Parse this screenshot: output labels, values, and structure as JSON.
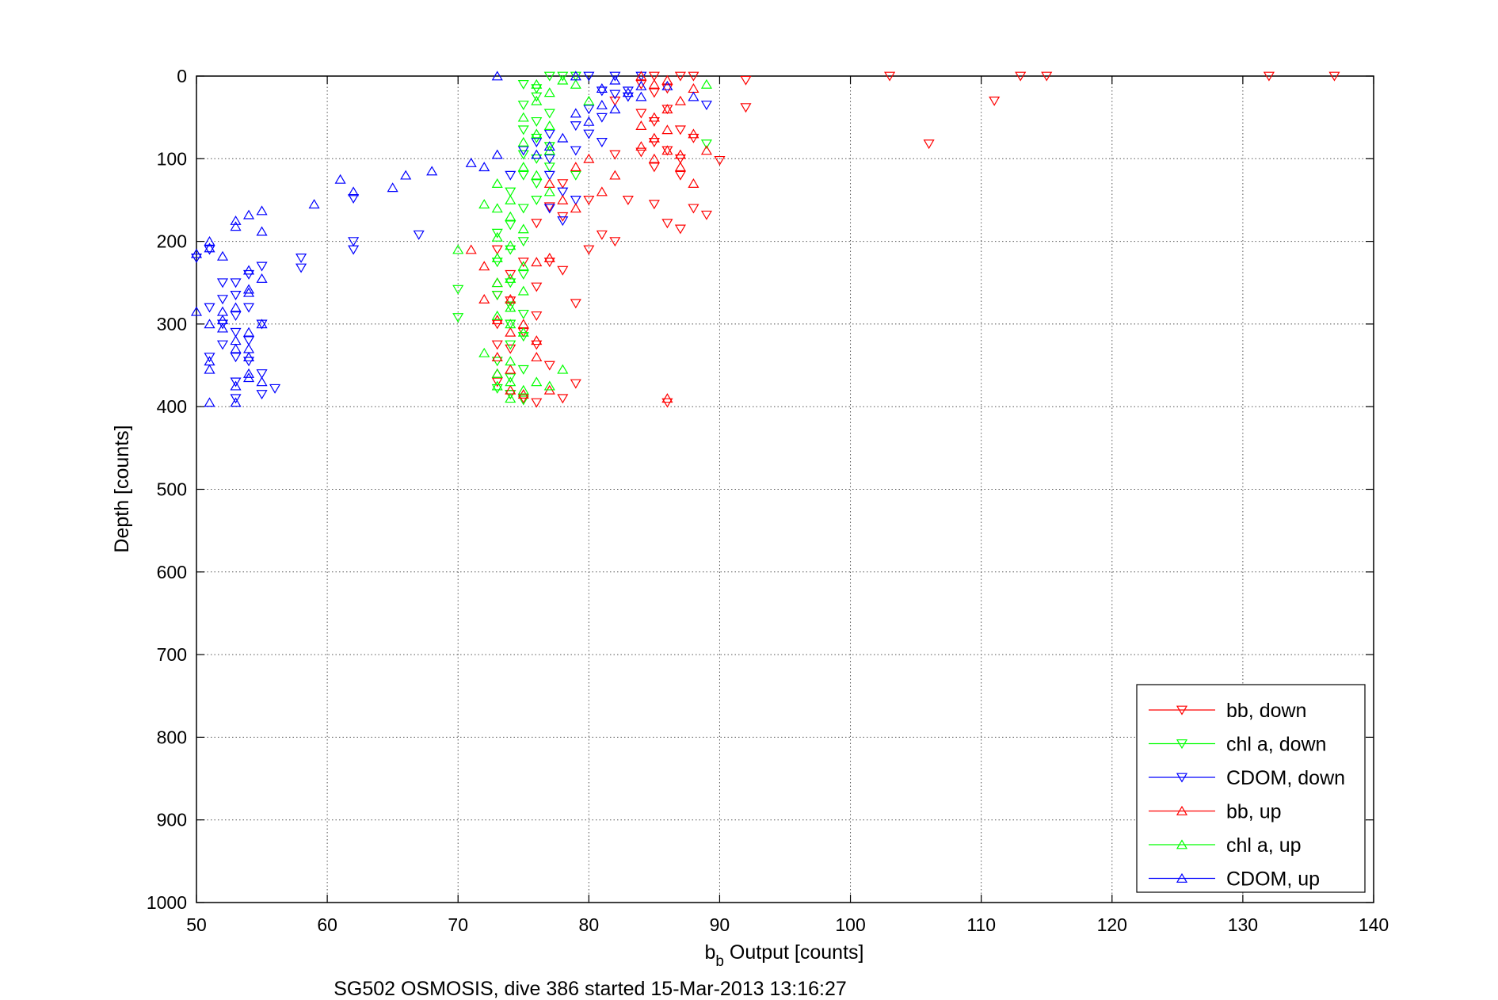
{
  "chart_data": {
    "type": "scatter",
    "xlabel_main": "b",
    "xlabel_sub": "b",
    "xlabel_rest": " Output [counts]",
    "ylabel": "Depth [counts]",
    "caption": "SG502 OSMOSIS, dive 386 started 15-Mar-2013 13:16:27",
    "xlim": [
      50,
      140
    ],
    "ylim": [
      0,
      1000
    ],
    "y_reversed": true,
    "grid": true,
    "x_ticks": [
      50,
      60,
      70,
      80,
      90,
      100,
      110,
      120,
      130,
      140
    ],
    "y_ticks": [
      0,
      100,
      200,
      300,
      400,
      500,
      600,
      700,
      800,
      900,
      1000
    ],
    "legend_position": "bottom-right",
    "series": [
      {
        "name": "bb, down",
        "color": "#ff0000",
        "marker": "triangle-down",
        "points": [
          [
            85,
            0
          ],
          [
            87,
            0
          ],
          [
            88,
            0
          ],
          [
            103,
            0
          ],
          [
            113,
            0
          ],
          [
            115,
            0
          ],
          [
            132,
            0
          ],
          [
            137,
            0
          ],
          [
            92,
            5
          ],
          [
            111,
            30
          ],
          [
            92,
            38
          ],
          [
            106,
            82
          ],
          [
            84,
            10
          ],
          [
            85,
            20
          ],
          [
            86,
            15
          ],
          [
            82,
            30
          ],
          [
            84,
            45
          ],
          [
            85,
            55
          ],
          [
            86,
            40
          ],
          [
            87,
            65
          ],
          [
            88,
            75
          ],
          [
            85,
            80
          ],
          [
            86,
            90
          ],
          [
            84,
            92
          ],
          [
            82,
            95
          ],
          [
            87,
            100
          ],
          [
            90,
            102
          ],
          [
            85,
            110
          ],
          [
            87,
            120
          ],
          [
            83,
            150
          ],
          [
            85,
            155
          ],
          [
            88,
            160
          ],
          [
            89,
            168
          ],
          [
            86,
            178
          ],
          [
            87,
            185
          ],
          [
            81,
            192
          ],
          [
            82,
            200
          ],
          [
            80,
            210
          ],
          [
            77,
            158
          ],
          [
            78,
            170
          ],
          [
            76,
            178
          ],
          [
            73,
            210
          ],
          [
            75,
            225
          ],
          [
            77,
            225
          ],
          [
            78,
            235
          ],
          [
            74,
            240
          ],
          [
            76,
            255
          ],
          [
            73,
            265
          ],
          [
            74,
            272
          ],
          [
            76,
            290
          ],
          [
            79,
            275
          ],
          [
            73,
            300
          ],
          [
            75,
            310
          ],
          [
            73,
            325
          ],
          [
            74,
            330
          ],
          [
            76,
            325
          ],
          [
            77,
            350
          ],
          [
            73,
            370
          ],
          [
            74,
            385
          ],
          [
            75,
            390
          ],
          [
            76,
            395
          ],
          [
            78,
            390
          ],
          [
            86,
            395
          ],
          [
            79,
            372
          ],
          [
            80,
            150
          ],
          [
            78,
            130
          ]
        ]
      },
      {
        "name": "chl a, down",
        "color": "#00ff00",
        "marker": "triangle-down",
        "points": [
          [
            75,
            10
          ],
          [
            76,
            15
          ],
          [
            77,
            0
          ],
          [
            78,
            0
          ],
          [
            79,
            0
          ],
          [
            76,
            25
          ],
          [
            75,
            35
          ],
          [
            77,
            45
          ],
          [
            76,
            55
          ],
          [
            75,
            65
          ],
          [
            76,
            75
          ],
          [
            77,
            85
          ],
          [
            75,
            95
          ],
          [
            76,
            100
          ],
          [
            77,
            110
          ],
          [
            75,
            120
          ],
          [
            76,
            130
          ],
          [
            74,
            140
          ],
          [
            76,
            150
          ],
          [
            75,
            160
          ],
          [
            74,
            180
          ],
          [
            73,
            190
          ],
          [
            75,
            200
          ],
          [
            74,
            210
          ],
          [
            73,
            225
          ],
          [
            75,
            240
          ],
          [
            74,
            250
          ],
          [
            73,
            265
          ],
          [
            74,
            278
          ],
          [
            75,
            288
          ],
          [
            74,
            300
          ],
          [
            75,
            315
          ],
          [
            74,
            325
          ],
          [
            73,
            345
          ],
          [
            75,
            355
          ],
          [
            74,
            365
          ],
          [
            73,
            378
          ],
          [
            74,
            385
          ],
          [
            75,
            392
          ],
          [
            70,
            258
          ],
          [
            70,
            292
          ],
          [
            89,
            82
          ],
          [
            79,
            120
          ]
        ]
      },
      {
        "name": "CDOM, down",
        "color": "#0000ff",
        "marker": "triangle-down",
        "points": [
          [
            80,
            0
          ],
          [
            82,
            0
          ],
          [
            84,
            0
          ],
          [
            81,
            18
          ],
          [
            82,
            22
          ],
          [
            83,
            18
          ],
          [
            80,
            40
          ],
          [
            81,
            50
          ],
          [
            79,
            60
          ],
          [
            80,
            70
          ],
          [
            81,
            80
          ],
          [
            79,
            90
          ],
          [
            77,
            100
          ],
          [
            77,
            120
          ],
          [
            78,
            140
          ],
          [
            79,
            150
          ],
          [
            77,
            160
          ],
          [
            78,
            175
          ],
          [
            75,
            90
          ],
          [
            76,
            80
          ],
          [
            77,
            70
          ],
          [
            74,
            120
          ],
          [
            83,
            25
          ],
          [
            62,
            210
          ],
          [
            62,
            200
          ],
          [
            58,
            220
          ],
          [
            58,
            232
          ],
          [
            62,
            148
          ],
          [
            67,
            192
          ],
          [
            55,
            230
          ],
          [
            51,
            210
          ],
          [
            50,
            220
          ],
          [
            51,
            280
          ],
          [
            52,
            250
          ],
          [
            53,
            265
          ],
          [
            52,
            300
          ],
          [
            53,
            310
          ],
          [
            52,
            325
          ],
          [
            51,
            340
          ],
          [
            53,
            340
          ],
          [
            54,
            320
          ],
          [
            55,
            300
          ],
          [
            54,
            345
          ],
          [
            53,
            370
          ],
          [
            55,
            360
          ],
          [
            56,
            378
          ],
          [
            55,
            385
          ],
          [
            53,
            390
          ],
          [
            54,
            240
          ],
          [
            53,
            250
          ],
          [
            52,
            270
          ],
          [
            53,
            290
          ],
          [
            54,
            280
          ],
          [
            89,
            35
          ]
        ]
      },
      {
        "name": "bb, up",
        "color": "#ff0000",
        "marker": "triangle-up",
        "points": [
          [
            84,
            0
          ],
          [
            85,
            10
          ],
          [
            86,
            5
          ],
          [
            88,
            15
          ],
          [
            87,
            30
          ],
          [
            86,
            40
          ],
          [
            85,
            50
          ],
          [
            84,
            60
          ],
          [
            86,
            65
          ],
          [
            88,
            70
          ],
          [
            85,
            75
          ],
          [
            84,
            85
          ],
          [
            86,
            90
          ],
          [
            87,
            95
          ],
          [
            89,
            90
          ],
          [
            85,
            100
          ],
          [
            87,
            110
          ],
          [
            88,
            130
          ],
          [
            82,
            120
          ],
          [
            81,
            140
          ],
          [
            80,
            100
          ],
          [
            79,
            110
          ],
          [
            77,
            130
          ],
          [
            71,
            210
          ],
          [
            72,
            230
          ],
          [
            73,
            250
          ],
          [
            72,
            270
          ],
          [
            74,
            270
          ],
          [
            73,
            295
          ],
          [
            74,
            310
          ],
          [
            75,
            300
          ],
          [
            76,
            320
          ],
          [
            73,
            340
          ],
          [
            74,
            355
          ],
          [
            76,
            340
          ],
          [
            73,
            360
          ],
          [
            74,
            380
          ],
          [
            75,
            385
          ],
          [
            77,
            380
          ],
          [
            76,
            225
          ],
          [
            77,
            220
          ],
          [
            78,
            150
          ],
          [
            79,
            160
          ],
          [
            86,
            390
          ]
        ]
      },
      {
        "name": "chl a, up",
        "color": "#00ff00",
        "marker": "triangle-up",
        "points": [
          [
            76,
            10
          ],
          [
            77,
            20
          ],
          [
            78,
            5
          ],
          [
            79,
            10
          ],
          [
            76,
            30
          ],
          [
            75,
            50
          ],
          [
            77,
            60
          ],
          [
            76,
            70
          ],
          [
            75,
            80
          ],
          [
            77,
            90
          ],
          [
            75,
            110
          ],
          [
            76,
            120
          ],
          [
            77,
            140
          ],
          [
            73,
            130
          ],
          [
            74,
            150
          ],
          [
            72,
            155
          ],
          [
            73,
            160
          ],
          [
            74,
            170
          ],
          [
            75,
            185
          ],
          [
            73,
            195
          ],
          [
            74,
            205
          ],
          [
            73,
            220
          ],
          [
            75,
            230
          ],
          [
            74,
            245
          ],
          [
            73,
            250
          ],
          [
            75,
            260
          ],
          [
            74,
            280
          ],
          [
            73,
            290
          ],
          [
            74,
            300
          ],
          [
            75,
            310
          ],
          [
            72,
            335
          ],
          [
            74,
            345
          ],
          [
            73,
            360
          ],
          [
            74,
            370
          ],
          [
            73,
            375
          ],
          [
            75,
            380
          ],
          [
            74,
            390
          ],
          [
            76,
            370
          ],
          [
            77,
            375
          ],
          [
            78,
            355
          ],
          [
            70,
            210
          ],
          [
            89,
            10
          ],
          [
            80,
            30
          ]
        ]
      },
      {
        "name": "CDOM, up",
        "color": "#0000ff",
        "marker": "triangle-up",
        "points": [
          [
            73,
            0
          ],
          [
            79,
            0
          ],
          [
            81,
            15
          ],
          [
            82,
            5
          ],
          [
            83,
            20
          ],
          [
            84,
            25
          ],
          [
            81,
            35
          ],
          [
            80,
            55
          ],
          [
            79,
            45
          ],
          [
            78,
            75
          ],
          [
            77,
            85
          ],
          [
            76,
            95
          ],
          [
            73,
            95
          ],
          [
            71,
            105
          ],
          [
            72,
            110
          ],
          [
            68,
            115
          ],
          [
            66,
            120
          ],
          [
            65,
            135
          ],
          [
            61,
            125
          ],
          [
            62,
            140
          ],
          [
            59,
            155
          ],
          [
            55,
            163
          ],
          [
            54,
            168
          ],
          [
            55,
            188
          ],
          [
            53,
            175
          ],
          [
            53,
            182
          ],
          [
            51,
            200
          ],
          [
            51,
            208
          ],
          [
            50,
            215
          ],
          [
            52,
            218
          ],
          [
            50,
            285
          ],
          [
            51,
            300
          ],
          [
            52,
            305
          ],
          [
            51,
            345
          ],
          [
            51,
            355
          ],
          [
            53,
            320
          ],
          [
            54,
            330
          ],
          [
            55,
            300
          ],
          [
            54,
            310
          ],
          [
            53,
            330
          ],
          [
            54,
            340
          ],
          [
            54,
            360
          ],
          [
            53,
            375
          ],
          [
            54,
            365
          ],
          [
            55,
            370
          ],
          [
            51,
            395
          ],
          [
            53,
            395
          ],
          [
            54,
            258
          ],
          [
            54,
            262
          ],
          [
            55,
            245
          ],
          [
            53,
            280
          ],
          [
            52,
            285
          ],
          [
            54,
            235
          ],
          [
            52,
            295
          ],
          [
            82,
            40
          ],
          [
            84,
            12
          ],
          [
            86,
            12
          ],
          [
            88,
            25
          ]
        ]
      }
    ]
  }
}
